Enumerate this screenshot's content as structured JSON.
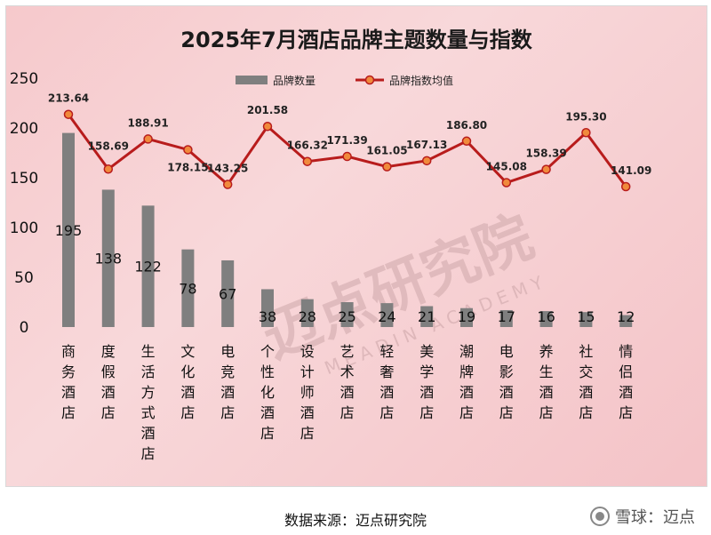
{
  "chart_data": {
    "type": "bar+line",
    "title": "2025年7月酒店品牌主题数量与指数",
    "categories": [
      "商务酒店",
      "度假酒店",
      "生活方式酒店",
      "文化酒店",
      "电竞酒店",
      "个性化酒店",
      "设计师酒店",
      "艺术酒店",
      "轻奢酒店",
      "美学酒店",
      "潮牌酒店",
      "电影酒店",
      "养生酒店",
      "社交酒店",
      "情侣酒店"
    ],
    "series": [
      {
        "name": "品牌数量",
        "type": "bar",
        "color": "#7f7f7f",
        "values": [
          195,
          138,
          122,
          78,
          67,
          38,
          28,
          25,
          24,
          21,
          19,
          17,
          16,
          15,
          12
        ]
      },
      {
        "name": "品牌指数均值",
        "type": "line",
        "color": "#b81c1c",
        "marker_color": "#f08a3c",
        "values": [
          213.64,
          158.69,
          188.91,
          178.15,
          143.25,
          201.58,
          166.32,
          171.39,
          161.05,
          167.13,
          186.8,
          145.08,
          158.39,
          195.3,
          141.09
        ],
        "labels": [
          "213.64",
          "158.69",
          "188.91",
          "178.15",
          "143.25",
          "201.58",
          "166.32",
          "171.39",
          "161.05",
          "167.13",
          "186.80",
          "145.08",
          "158.39",
          "195.30",
          "141.09"
        ]
      }
    ],
    "ylim": [
      0,
      250
    ],
    "yticks": [
      "0",
      "50",
      "100",
      "150",
      "200",
      "250"
    ],
    "legend": "top-center",
    "grid": false
  },
  "watermark": {
    "text": "迈点研究院",
    "text_en": "MEADIN ACADEMY"
  },
  "source": "数据来源：迈点研究院",
  "footer_brand": "雪球：迈点"
}
